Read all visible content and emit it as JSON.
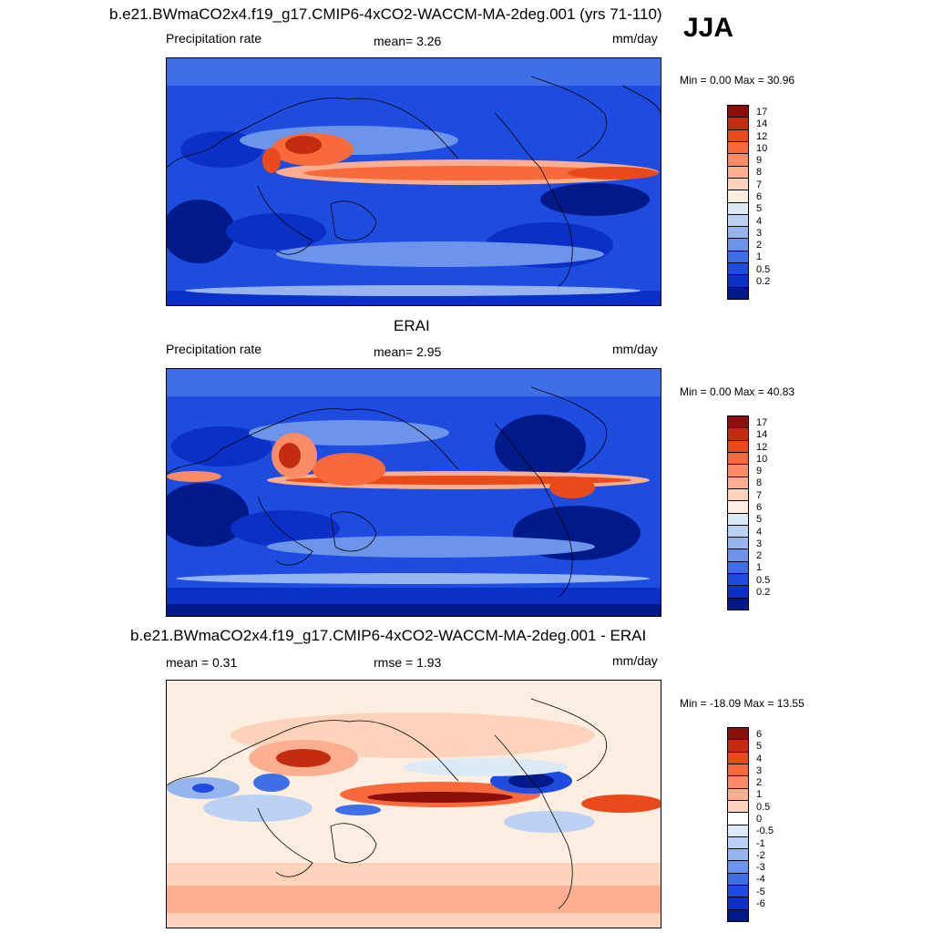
{
  "season": "JJA",
  "panels": [
    {
      "title": "b.e21.BWmaCO2x4.f19_g17.CMIP6-4xCO2-WACCM-MA-2deg.001 (yrs 71-110)",
      "left_label": "Precipitation rate",
      "mid_label": "mean=   3.26",
      "units": "mm/day",
      "minmax": "Min =   0.00 Max =  30.96",
      "colorbar_labels": [
        "17",
        "14",
        "12",
        "10",
        "9",
        "8",
        "7",
        "6",
        "5",
        "4",
        "3",
        "2",
        "1",
        "0.5",
        "0.2"
      ],
      "colorbar_colors": [
        "#8a0f0a",
        "#c42c10",
        "#e84a1c",
        "#f86a3c",
        "#fc8c66",
        "#fcae90",
        "#fdd3bb",
        "#fdeee2",
        "#dceaf8",
        "#bcd2f4",
        "#96b4ee",
        "#6c94ea",
        "#3e6ee8",
        "#1e4ce0",
        "#0a30c8",
        "#001a8a"
      ]
    },
    {
      "title": "ERAI",
      "left_label": "Precipitation rate",
      "mid_label": "mean=   2.95",
      "units": "mm/day",
      "minmax": "Min =   0.00 Max =  40.83",
      "colorbar_labels": [
        "17",
        "14",
        "12",
        "10",
        "9",
        "8",
        "7",
        "6",
        "5",
        "4",
        "3",
        "2",
        "1",
        "0.5",
        "0.2"
      ],
      "colorbar_colors": [
        "#8a0f0a",
        "#c42c10",
        "#e84a1c",
        "#f86a3c",
        "#fc8c66",
        "#fcae90",
        "#fdd3bb",
        "#fdeee2",
        "#dceaf8",
        "#bcd2f4",
        "#96b4ee",
        "#6c94ea",
        "#3e6ee8",
        "#1e4ce0",
        "#0a30c8",
        "#001a8a"
      ]
    },
    {
      "title": "b.e21.BWmaCO2x4.f19_g17.CMIP6-4xCO2-WACCM-MA-2deg.001 - ERAI",
      "left_label": "mean =   0.31",
      "mid_label": "rmse =   1.93",
      "units": "mm/day",
      "minmax": "Min = -18.09 Max =  13.55",
      "colorbar_labels": [
        "6",
        "5",
        "4",
        "3",
        "2",
        "1",
        "0.5",
        "0",
        "-0.5",
        "-1",
        "-2",
        "-3",
        "-4",
        "-5",
        "-6"
      ],
      "colorbar_colors": [
        "#8a0f0a",
        "#c42c10",
        "#e84a1c",
        "#f86a3c",
        "#fc8c66",
        "#fcae90",
        "#fdd3bb",
        "#ffffff",
        "#dceaf8",
        "#bcd2f4",
        "#96b4ee",
        "#6c94ea",
        "#3e6ee8",
        "#1e4ce0",
        "#0a30c8",
        "#001a8a"
      ]
    }
  ]
}
